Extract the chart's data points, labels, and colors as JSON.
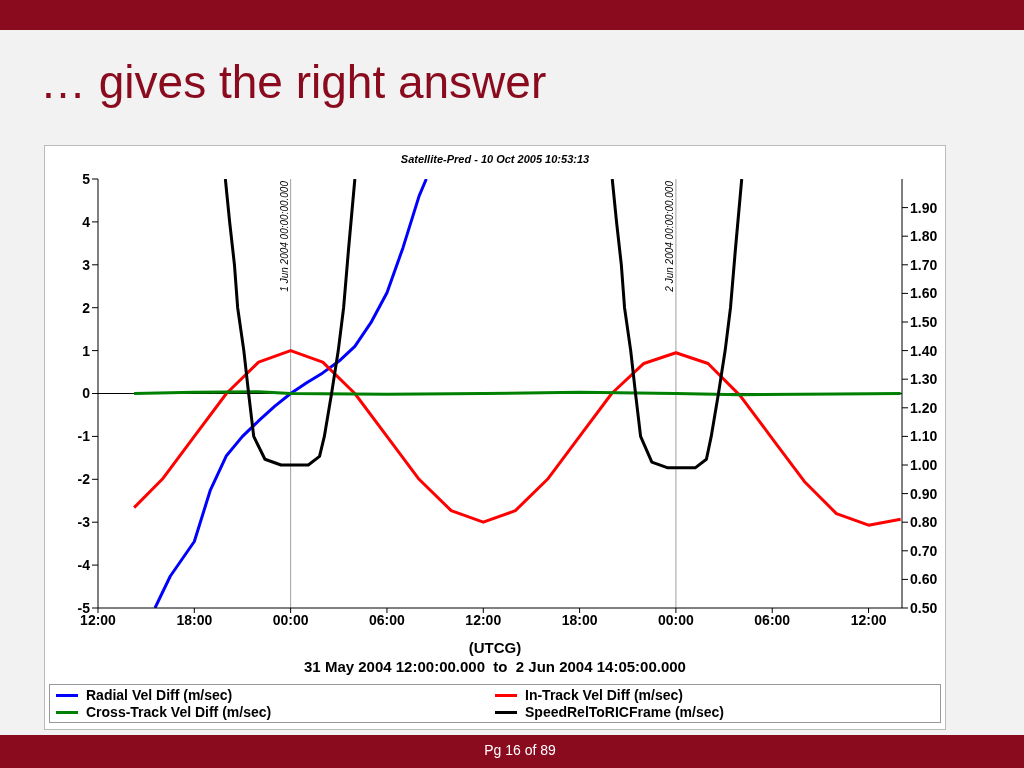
{
  "chart_data": {
    "type": "line",
    "title": "… gives the right answer",
    "subtitle": "Satellite-Pred - 10 Oct 2005 10:53:13",
    "xlabel": "(UTCG)\n31 May 2004 12:00:00.000  to  2 Jun 2004 14:05:00.000",
    "annotations": [
      "Pg 16 of 89"
    ],
    "xlim": [
      "2004-05-31T12:00",
      "2004-06-02T14:05"
    ],
    "xticks": [
      {
        "value": "2004-05-31T12:00",
        "label": "12:00"
      },
      {
        "value": "2004-05-31T18:00",
        "label": "18:00"
      },
      {
        "value": "2004-06-01T00:00",
        "label": "00:00"
      },
      {
        "value": "2004-06-01T06:00",
        "label": "06:00"
      },
      {
        "value": "2004-06-01T12:00",
        "label": "12:00"
      },
      {
        "value": "2004-06-01T18:00",
        "label": "18:00"
      },
      {
        "value": "2004-06-02T00:00",
        "label": "00:00"
      },
      {
        "value": "2004-06-02T06:00",
        "label": "06:00"
      },
      {
        "value": "2004-06-02T12:00",
        "label": "12:00"
      }
    ],
    "ylim": [
      -5,
      5
    ],
    "yticks": [
      -5,
      -4,
      -3,
      -2,
      -1,
      0,
      1,
      2,
      3,
      4,
      5
    ],
    "y2lim": [
      0.5,
      2.0
    ],
    "y2ticks": [
      {
        "value": 0.5,
        "label": "0.50"
      },
      {
        "value": 0.6,
        "label": "0.60"
      },
      {
        "value": 0.7,
        "label": "0.70"
      },
      {
        "value": 0.8,
        "label": "0.80"
      },
      {
        "value": 0.9,
        "label": "0.90"
      },
      {
        "value": 1.0,
        "label": "1.00"
      },
      {
        "value": 1.1,
        "label": "1.10"
      },
      {
        "value": 1.2,
        "label": "1.20"
      },
      {
        "value": 1.3,
        "label": "1.30"
      },
      {
        "value": 1.4,
        "label": "1.40"
      },
      {
        "value": 1.5,
        "label": "1.50"
      },
      {
        "value": 1.6,
        "label": "1.60"
      },
      {
        "value": 1.7,
        "label": "1.70"
      },
      {
        "value": 1.8,
        "label": "1.80"
      },
      {
        "value": 1.9,
        "label": "1.90"
      }
    ],
    "ref_lines": [
      {
        "axis": "x",
        "value": "2004-06-01T00:00",
        "label": "1 Jun 2004 00:00:00.000",
        "color": "#a0a0a0"
      },
      {
        "axis": "x",
        "value": "2004-06-02T00:00",
        "label": "2 Jun 2004 00:00:00.000",
        "color": "#a0a0a0"
      },
      {
        "axis": "y",
        "value": 0,
        "color": "#000000"
      }
    ],
    "legend": "bottom",
    "line_style": "solid",
    "series": [
      {
        "name": "Radial Vel Diff (m/sec)",
        "color": "#0000ff",
        "x": [
          "2004-05-31T15:33",
          "2004-05-31T16:30",
          "2004-05-31T18:00",
          "2004-05-31T19:00",
          "2004-05-31T20:00",
          "2004-05-31T21:00",
          "2004-05-31T22:00",
          "2004-05-31T23:00",
          "2004-06-01T00:00",
          "2004-06-01T01:00",
          "2004-06-01T02:00",
          "2004-06-01T03:00",
          "2004-06-01T04:00",
          "2004-06-01T05:00",
          "2004-06-01T06:00",
          "2004-06-01T07:00",
          "2004-06-01T08:00",
          "2004-06-01T08:27"
        ],
        "values": [
          -5,
          -4.26,
          -3.45,
          -2.25,
          -1.45,
          -1.0,
          -0.64,
          -0.3,
          0,
          0.25,
          0.48,
          0.75,
          1.1,
          1.65,
          2.35,
          3.4,
          4.6,
          5
        ]
      },
      {
        "name": "In-Track Vel Diff (m/sec)",
        "color": "#ff0000",
        "x": [
          "2004-05-31T14:15",
          "2004-05-31T16:00",
          "2004-05-31T18:00",
          "2004-05-31T20:00",
          "2004-05-31T22:00",
          "2004-06-01T00:00",
          "2004-06-01T02:00",
          "2004-06-01T04:00",
          "2004-06-01T06:00",
          "2004-06-01T08:00",
          "2004-06-01T10:00",
          "2004-06-01T12:00",
          "2004-06-01T14:00",
          "2004-06-01T16:00",
          "2004-06-01T18:00",
          "2004-06-01T20:00",
          "2004-06-01T22:00",
          "2004-06-02T00:00",
          "2004-06-02T02:00",
          "2004-06-02T04:00",
          "2004-06-02T06:00",
          "2004-06-02T08:00",
          "2004-06-02T10:00",
          "2004-06-02T12:00",
          "2004-06-02T14:00"
        ],
        "values": [
          -2.66,
          -2.0,
          -1.0,
          0.0,
          0.73,
          1.0,
          0.73,
          0.0,
          -1.0,
          -2.0,
          -2.73,
          -3.0,
          -2.73,
          -2.0,
          -1.0,
          0.0,
          0.7,
          0.95,
          0.7,
          -0.05,
          -1.05,
          -2.05,
          -2.8,
          -3.07,
          -2.93
        ]
      },
      {
        "name": "Cross-Track Vel Diff (m/sec)",
        "color": "#008000",
        "x": [
          "2004-05-31T14:15",
          "2004-05-31T18:00",
          "2004-05-31T22:00",
          "2004-06-01T00:00",
          "2004-06-01T06:00",
          "2004-06-01T12:00",
          "2004-06-01T18:00",
          "2004-06-02T00:00",
          "2004-06-02T04:00",
          "2004-06-02T10:00",
          "2004-06-02T14:00"
        ],
        "values": [
          0.0,
          0.03,
          0.04,
          0.0,
          -0.02,
          0.0,
          0.03,
          0.0,
          -0.03,
          -0.01,
          0.0
        ]
      },
      {
        "name": "SpeedRelToRICFrame (m/sec)",
        "color": "#000000",
        "axis": "y2",
        "x": [
          "2004-05-31T19:56",
          "2004-05-31T20:12",
          "2004-05-31T20:30",
          "2004-05-31T20:42",
          "2004-05-31T21:05",
          "2004-05-31T21:23",
          "2004-05-31T21:42",
          "2004-05-31T22:24",
          "2004-05-31T23:24",
          "2004-06-01T00:12",
          "2004-06-01T01:06",
          "2004-06-01T01:48",
          "2004-06-01T02:06",
          "2004-06-01T02:33",
          "2004-06-01T02:58",
          "2004-06-01T03:18",
          "2004-06-01T03:36",
          "2004-06-01T04:00",
          "2004-06-01T12:00",
          "2004-06-01T20:02",
          "2004-06-01T20:18",
          "2004-06-01T20:36",
          "2004-06-01T20:48",
          "2004-06-01T21:11",
          "2004-06-01T21:29",
          "2004-06-01T21:48",
          "2004-06-01T22:30",
          "2004-06-01T23:30",
          "2004-06-02T00:18",
          "2004-06-02T01:12",
          "2004-06-02T01:54",
          "2004-06-02T02:12",
          "2004-06-02T02:39",
          "2004-06-02T03:04",
          "2004-06-02T03:24",
          "2004-06-02T03:42",
          "2004-06-02T04:06"
        ],
        "values": [
          2.0,
          1.85,
          1.7,
          1.55,
          1.4,
          1.25,
          1.1,
          1.02,
          1.0,
          1.0,
          1.0,
          1.03,
          1.1,
          1.25,
          1.4,
          1.55,
          1.75,
          2.0,
          null,
          2.0,
          1.85,
          1.7,
          1.55,
          1.4,
          1.25,
          1.1,
          1.01,
          0.99,
          0.99,
          0.99,
          1.02,
          1.1,
          1.25,
          1.4,
          1.55,
          1.75,
          2.0
        ]
      }
    ]
  }
}
